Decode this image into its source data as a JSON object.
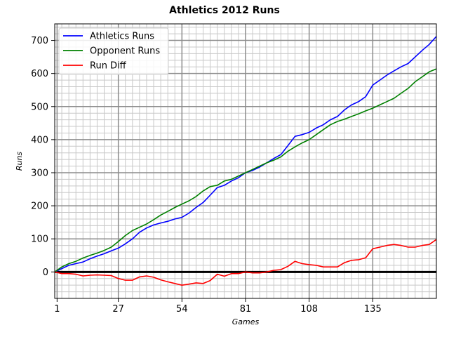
{
  "chart_data": {
    "type": "line",
    "title": "Athletics 2012 Runs",
    "xlabel": "Games",
    "ylabel": "Runs",
    "xlim": [
      0,
      162
    ],
    "ylim": [
      -80,
      750
    ],
    "x_ticks": [
      1,
      27,
      54,
      81,
      108,
      135
    ],
    "y_ticks": [
      0,
      100,
      200,
      300,
      400,
      500,
      600,
      700
    ],
    "grid": "major and minor",
    "zero_line": 0,
    "legend_position": "top-left",
    "series": [
      {
        "name": "Athletics Runs",
        "color": "#0000ff",
        "x": [
          0,
          3,
          6,
          9,
          12,
          15,
          18,
          21,
          24,
          27,
          30,
          33,
          36,
          39,
          42,
          45,
          48,
          51,
          54,
          57,
          60,
          63,
          66,
          69,
          72,
          75,
          78,
          81,
          84,
          87,
          90,
          93,
          96,
          99,
          102,
          105,
          108,
          111,
          114,
          117,
          120,
          123,
          126,
          129,
          132,
          135,
          138,
          141,
          144,
          147,
          150,
          153,
          156,
          159,
          162
        ],
        "values": [
          0,
          10,
          20,
          25,
          30,
          40,
          48,
          55,
          64,
          72,
          85,
          100,
          120,
          133,
          142,
          148,
          153,
          160,
          165,
          178,
          195,
          210,
          232,
          255,
          262,
          275,
          285,
          300,
          307,
          317,
          330,
          343,
          355,
          382,
          410,
          415,
          422,
          435,
          445,
          460,
          470,
          490,
          505,
          515,
          530,
          565,
          580,
          595,
          608,
          620,
          630,
          650,
          670,
          688,
          712
        ]
      },
      {
        "name": "Opponent Runs",
        "color": "#008000",
        "x": [
          0,
          3,
          6,
          9,
          12,
          15,
          18,
          21,
          24,
          27,
          30,
          33,
          36,
          39,
          42,
          45,
          48,
          51,
          54,
          57,
          60,
          63,
          66,
          69,
          72,
          75,
          78,
          81,
          84,
          87,
          90,
          93,
          96,
          99,
          102,
          105,
          108,
          111,
          114,
          117,
          120,
          123,
          126,
          129,
          132,
          135,
          138,
          141,
          144,
          147,
          150,
          153,
          156,
          159,
          162
        ],
        "values": [
          0,
          15,
          25,
          32,
          42,
          50,
          57,
          65,
          75,
          92,
          110,
          125,
          135,
          145,
          158,
          172,
          183,
          195,
          205,
          215,
          228,
          245,
          258,
          262,
          275,
          280,
          290,
          300,
          310,
          320,
          330,
          338,
          348,
          365,
          378,
          390,
          400,
          415,
          430,
          445,
          455,
          462,
          470,
          478,
          487,
          495,
          505,
          515,
          525,
          540,
          555,
          575,
          590,
          605,
          614
        ]
      },
      {
        "name": "Run Diff",
        "color": "#ff0000",
        "x": [
          0,
          3,
          6,
          9,
          12,
          15,
          18,
          21,
          24,
          27,
          30,
          33,
          36,
          39,
          42,
          45,
          48,
          51,
          54,
          57,
          60,
          63,
          66,
          69,
          72,
          75,
          78,
          81,
          84,
          87,
          90,
          93,
          96,
          99,
          102,
          105,
          108,
          111,
          114,
          117,
          120,
          123,
          126,
          129,
          132,
          135,
          138,
          141,
          144,
          147,
          150,
          153,
          156,
          159,
          162
        ],
        "values": [
          0,
          -5,
          -5,
          -7,
          -12,
          -10,
          -9,
          -10,
          -11,
          -20,
          -25,
          -25,
          -15,
          -12,
          -16,
          -24,
          -30,
          -35,
          -40,
          -37,
          -33,
          -35,
          -26,
          -7,
          -13,
          -5,
          -5,
          0,
          -3,
          -3,
          0,
          5,
          7,
          17,
          32,
          25,
          22,
          20,
          15,
          15,
          15,
          28,
          35,
          37,
          43,
          70,
          75,
          80,
          83,
          80,
          75,
          75,
          80,
          83,
          98
        ]
      }
    ]
  }
}
